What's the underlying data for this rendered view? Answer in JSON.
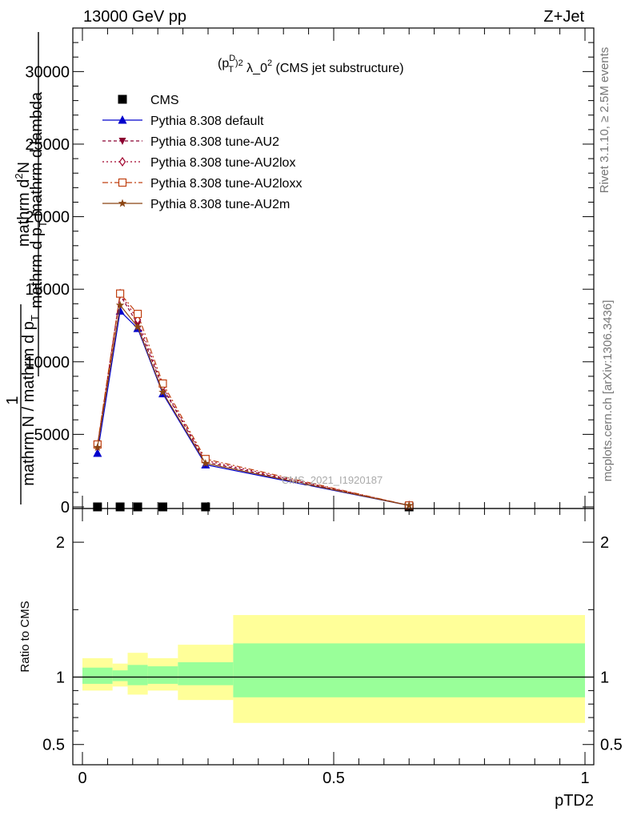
{
  "header": {
    "left": "13000 GeV pp",
    "right": "Z+Jet"
  },
  "side_labels": {
    "rivet": "Rivet 3.1.10, ≥ 2.5M events",
    "mcplots": "mcplots.cern.ch [arXiv:1306.3436]"
  },
  "plot_title": {
    "prefix": "(p",
    "sup1": "D",
    "sub1": "T",
    "sup2": "2",
    "middle": " λ_0",
    "sup3": "2",
    "suffix": " (CMS jet substructure)"
  },
  "watermark": "CMS_2021_I1920187",
  "ylabel_main": {
    "numerator": "mathrm d",
    "numerator_sup": "2",
    "numerator_tail": "N",
    "denominator": "mathrm d p",
    "denominator_sub": "T",
    "denominator_tail": " mathrm d lambda",
    "prefactor_num": "1",
    "prefactor_den": "mathrm N / mathrm d p",
    "prefactor_den_sub": "T"
  },
  "ratio_ylabel": "Ratio to CMS",
  "xlabel": "pTD2",
  "colors": {
    "cms": "#000000",
    "default": "#0000cc",
    "au2": "#8b0030",
    "au2lox": "#a0002a",
    "au2loxx": "#c04010",
    "au2m": "#8b4513",
    "band_inner": "#99ff99",
    "band_outer": "#ffff99"
  },
  "chart_data": [
    {
      "type": "line",
      "name": "main",
      "xlim": [
        0,
        1
      ],
      "ylim": [
        0,
        33000
      ],
      "yticks_major": [
        0,
        5000,
        10000,
        15000,
        20000,
        25000,
        30000
      ],
      "ytick_labels": [
        "0",
        "5000",
        "10000",
        "15000",
        "20000",
        "25000",
        "30000"
      ],
      "legend_placement": "top-left",
      "series": [
        {
          "name": "CMS",
          "key": "cms",
          "marker": "square",
          "x": [
            0.03,
            0.075,
            0.11,
            0.16,
            0.245,
            0.65
          ],
          "y": [
            0,
            0,
            0,
            0,
            0,
            0
          ]
        },
        {
          "name": "Pythia 8.308 default",
          "key": "default",
          "marker": "triangle-up",
          "dash": "",
          "x": [
            0.03,
            0.075,
            0.11,
            0.16,
            0.245,
            0.65
          ],
          "y": [
            3700,
            13500,
            12300,
            7800,
            2900,
            100
          ]
        },
        {
          "name": "Pythia 8.308 tune-AU2",
          "key": "au2",
          "marker": "triangle-down",
          "dash": "4,3",
          "x": [
            0.03,
            0.075,
            0.11,
            0.16,
            0.245,
            0.65
          ],
          "y": [
            4200,
            14600,
            12600,
            8200,
            3100,
            100
          ]
        },
        {
          "name": "Pythia 8.308 tune-AU2lox",
          "key": "au2lox",
          "marker": "diamond-open",
          "dash": "2,3",
          "x": [
            0.03,
            0.075,
            0.11,
            0.16,
            0.245,
            0.65
          ],
          "y": [
            4200,
            14700,
            12900,
            8300,
            3200,
            100
          ]
        },
        {
          "name": "Pythia 8.308 tune-AU2loxx",
          "key": "au2loxx",
          "marker": "square-open",
          "dash": "7,3,2,3",
          "x": [
            0.03,
            0.075,
            0.11,
            0.16,
            0.245,
            0.65
          ],
          "y": [
            4300,
            14700,
            13300,
            8500,
            3300,
            100
          ]
        },
        {
          "name": "Pythia 8.308 tune-AU2m",
          "key": "au2m",
          "marker": "star",
          "dash": "",
          "x": [
            0.03,
            0.075,
            0.11,
            0.16,
            0.245,
            0.65
          ],
          "y": [
            4100,
            13900,
            12400,
            7900,
            3000,
            100
          ]
        }
      ]
    },
    {
      "type": "area",
      "name": "ratio",
      "xlim": [
        0,
        1
      ],
      "ylim": [
        0.35,
        2.25
      ],
      "yticks_major": [
        0.5,
        1,
        2
      ],
      "ytick_labels": [
        "0.5",
        "1",
        "2"
      ],
      "xticks_major": [
        0,
        0.5,
        1
      ],
      "xtick_labels": [
        "0",
        "0.5",
        "1"
      ],
      "bins": [
        {
          "x0": 0.0,
          "x1": 0.06,
          "inner": [
            0.95,
            1.07
          ],
          "outer": [
            0.9,
            1.14
          ]
        },
        {
          "x0": 0.06,
          "x1": 0.09,
          "inner": [
            0.97,
            1.05
          ],
          "outer": [
            0.93,
            1.1
          ]
        },
        {
          "x0": 0.09,
          "x1": 0.13,
          "inner": [
            0.94,
            1.09
          ],
          "outer": [
            0.87,
            1.18
          ]
        },
        {
          "x0": 0.13,
          "x1": 0.19,
          "inner": [
            0.95,
            1.08
          ],
          "outer": [
            0.9,
            1.14
          ]
        },
        {
          "x0": 0.19,
          "x1": 0.3,
          "inner": [
            0.94,
            1.11
          ],
          "outer": [
            0.83,
            1.24
          ]
        },
        {
          "x0": 0.3,
          "x1": 1.0,
          "inner": [
            0.85,
            1.25
          ],
          "outer": [
            0.66,
            1.46
          ]
        }
      ],
      "reference_line": 1
    }
  ]
}
